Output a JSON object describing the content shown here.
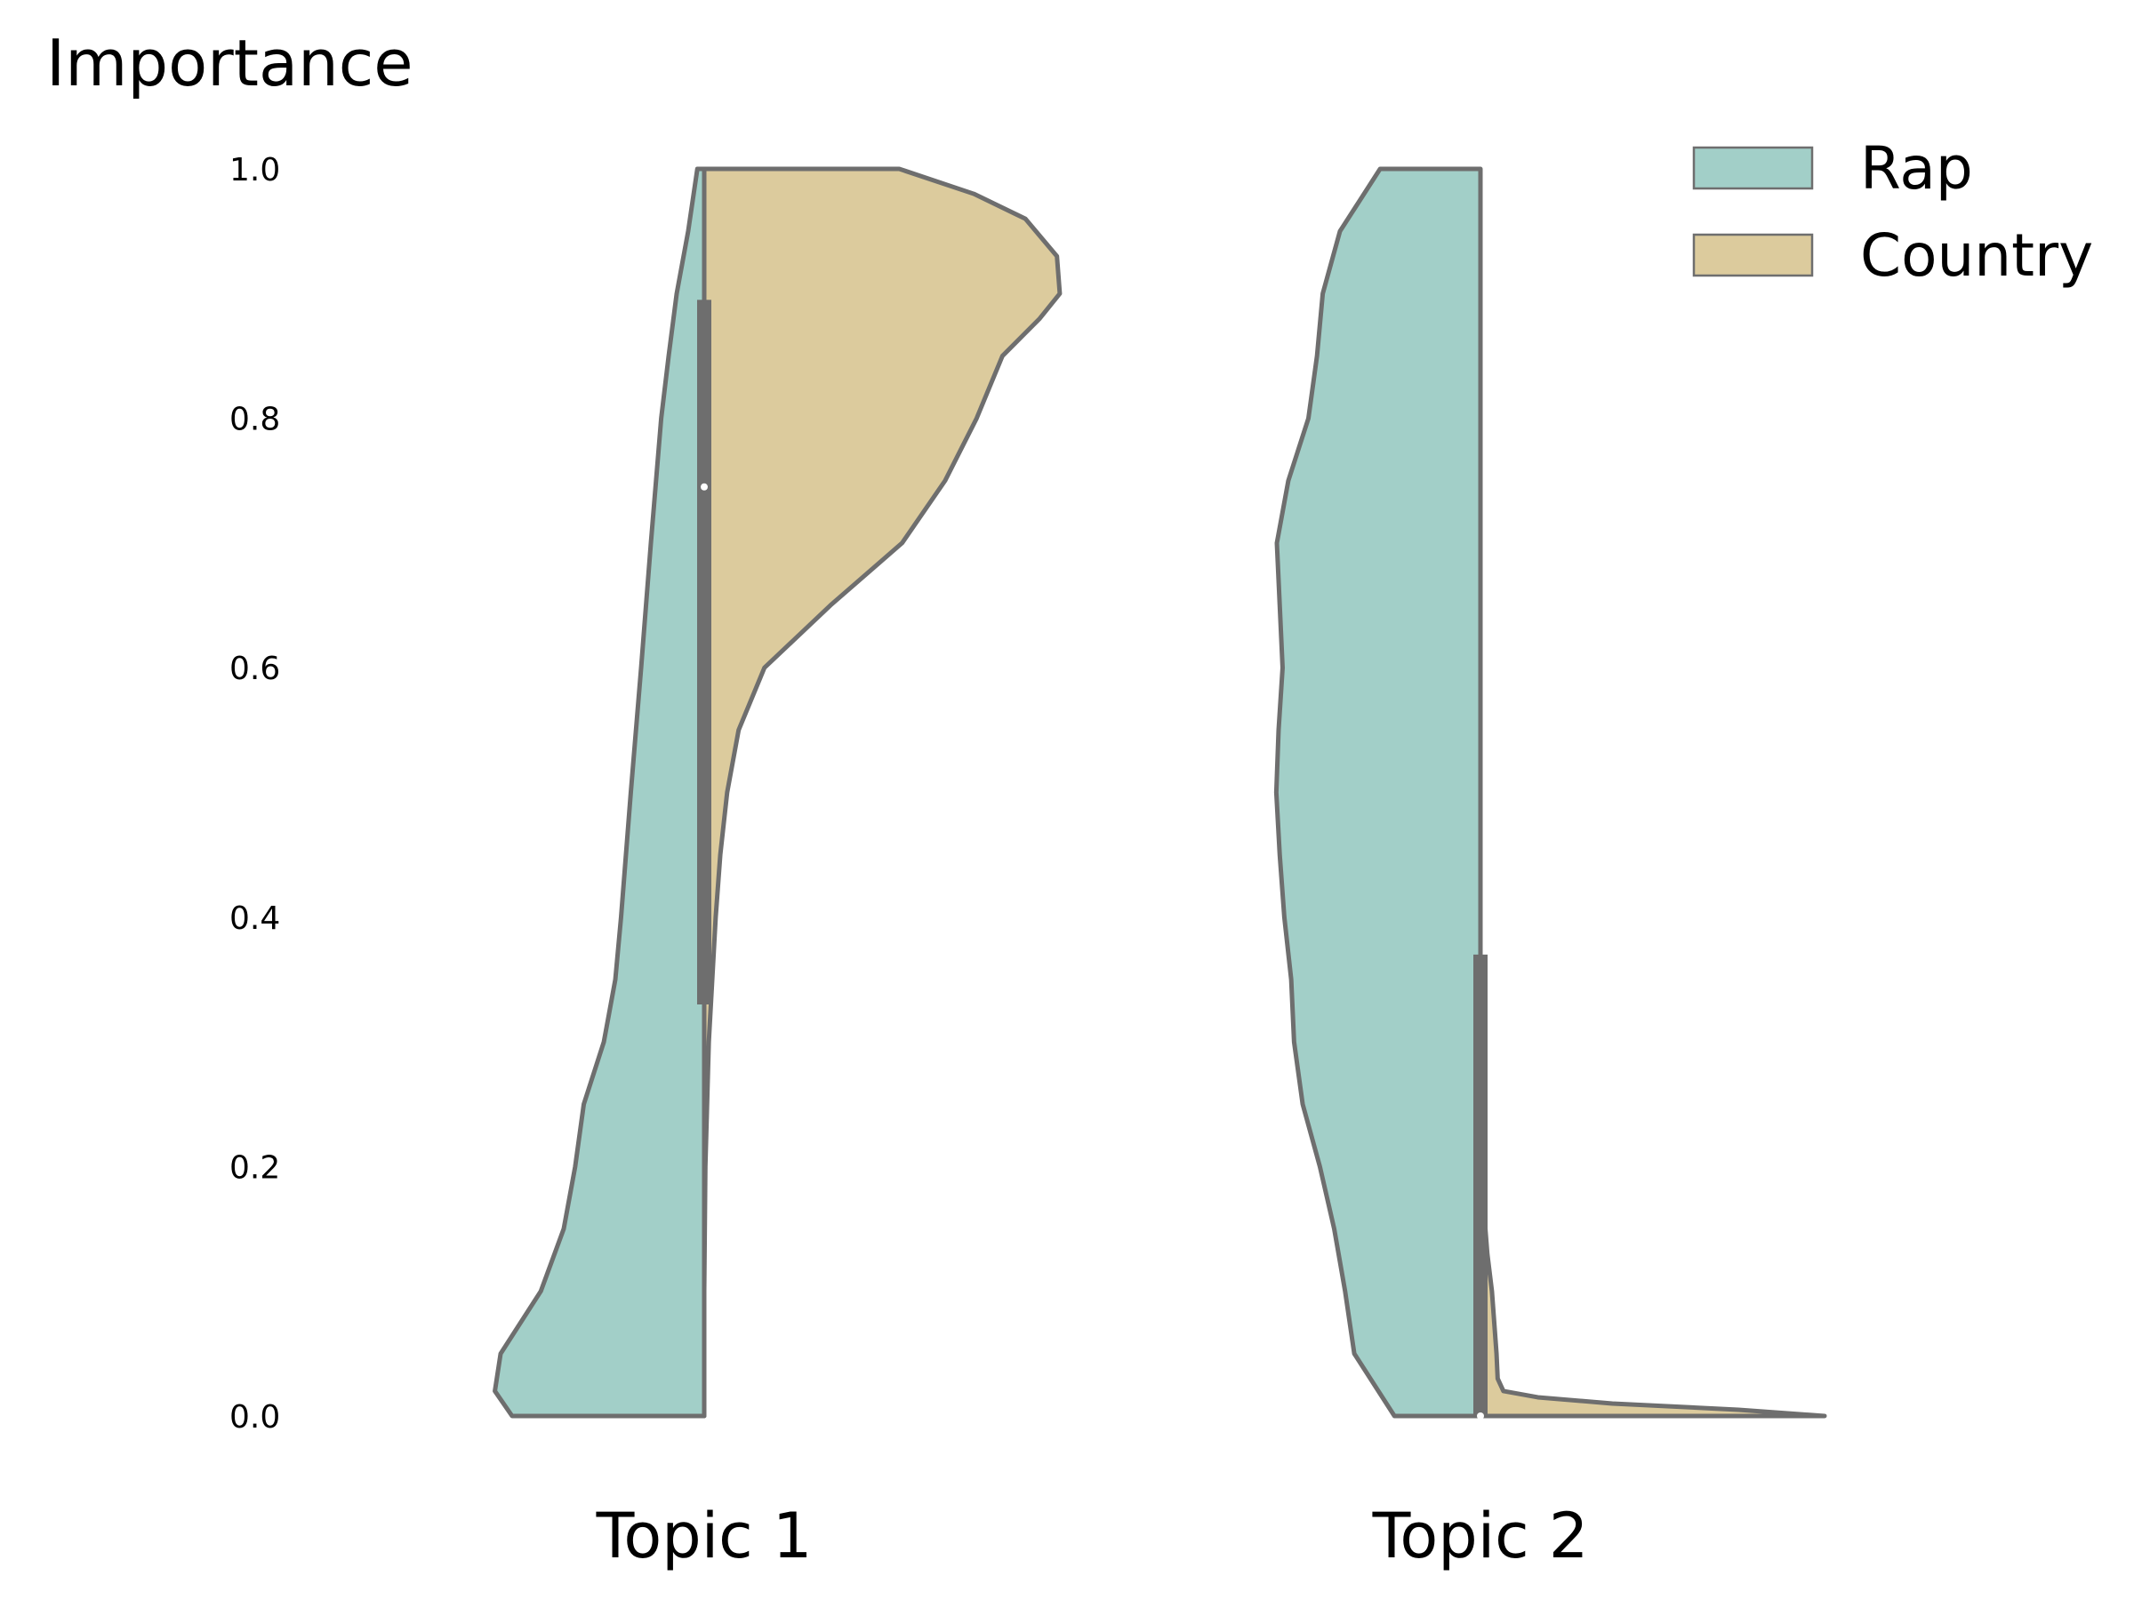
{
  "chart_data": {
    "type": "violin",
    "split": true,
    "ylabel": "Importance",
    "ylim": [
      0,
      1
    ],
    "yticks": [
      "0.0",
      "0.2",
      "0.4",
      "0.6",
      "0.8",
      "1.0"
    ],
    "categories": [
      "Topic 1",
      "Topic 2"
    ],
    "legend": {
      "position": "top-right",
      "entries": [
        "Rap",
        "Country"
      ]
    },
    "colors": {
      "Rap": "#a2cfc8",
      "Country": "#dccb9d",
      "outline": "#6e6e6e",
      "median": "#ffffff"
    },
    "series": [
      {
        "name": "Rap",
        "side": "left",
        "violins": [
          {
            "category": "Topic 1",
            "density": [
              [
                0.0,
                0.335
              ],
              [
                0.02,
                0.365
              ],
              [
                0.05,
                0.355
              ],
              [
                0.1,
                0.285
              ],
              [
                0.15,
                0.245
              ],
              [
                0.2,
                0.225
              ],
              [
                0.25,
                0.21
              ],
              [
                0.3,
                0.175
              ],
              [
                0.35,
                0.155
              ],
              [
                0.4,
                0.145
              ],
              [
                0.5,
                0.128
              ],
              [
                0.6,
                0.11
              ],
              [
                0.7,
                0.093
              ],
              [
                0.8,
                0.075
              ],
              [
                0.85,
                0.062
              ],
              [
                0.9,
                0.048
              ],
              [
                0.95,
                0.028
              ],
              [
                1.0,
                0.012
              ]
            ]
          },
          {
            "category": "Topic 2",
            "density": [
              [
                0.0,
                0.15
              ],
              [
                0.05,
                0.22
              ],
              [
                0.1,
                0.236
              ],
              [
                0.15,
                0.255
              ],
              [
                0.2,
                0.28
              ],
              [
                0.25,
                0.31
              ],
              [
                0.3,
                0.325
              ],
              [
                0.35,
                0.33
              ],
              [
                0.4,
                0.342
              ],
              [
                0.45,
                0.35
              ],
              [
                0.5,
                0.356
              ],
              [
                0.55,
                0.352
              ],
              [
                0.6,
                0.345
              ],
              [
                0.65,
                0.35
              ],
              [
                0.7,
                0.355
              ],
              [
                0.75,
                0.335
              ],
              [
                0.8,
                0.3
              ],
              [
                0.85,
                0.285
              ],
              [
                0.9,
                0.275
              ],
              [
                0.95,
                0.245
              ],
              [
                1.0,
                0.175
              ]
            ]
          }
        ],
        "box": [
          {
            "category": "Topic 1",
            "q1": 0.33,
            "median": 0.745,
            "q3": 0.895,
            "whisker_low": 0.14,
            "whisker_high": 1.0
          },
          {
            "category": "Topic 2",
            "q1": 0.0,
            "median": 0.0,
            "q3": 0.37,
            "whisker_low": 0.0,
            "whisker_high": 0.92
          }
        ]
      },
      {
        "name": "Country",
        "side": "right",
        "violins": [
          {
            "category": "Topic 1",
            "density": [
              [
                0.0,
                0.0
              ],
              [
                0.1,
                0.0
              ],
              [
                0.2,
                0.002
              ],
              [
                0.3,
                0.008
              ],
              [
                0.4,
                0.02
              ],
              [
                0.45,
                0.028
              ],
              [
                0.5,
                0.04
              ],
              [
                0.55,
                0.06
              ],
              [
                0.6,
                0.105
              ],
              [
                0.65,
                0.22
              ],
              [
                0.7,
                0.345
              ],
              [
                0.75,
                0.42
              ],
              [
                0.8,
                0.475
              ],
              [
                0.85,
                0.52
              ],
              [
                0.88,
                0.585
              ],
              [
                0.9,
                0.62
              ],
              [
                0.93,
                0.615
              ],
              [
                0.96,
                0.56
              ],
              [
                0.98,
                0.47
              ],
              [
                1.0,
                0.34
              ]
            ]
          },
          {
            "category": "Topic 2",
            "density": [
              [
                0.0,
                0.6
              ],
              [
                0.005,
                0.45
              ],
              [
                0.01,
                0.23
              ],
              [
                0.015,
                0.1
              ],
              [
                0.02,
                0.04
              ],
              [
                0.025,
                0.035
              ],
              [
                0.03,
                0.03
              ],
              [
                0.05,
                0.028
              ],
              [
                0.1,
                0.02
              ],
              [
                0.13,
                0.012
              ],
              [
                0.2,
                0.0
              ]
            ]
          }
        ],
        "box": [
          {
            "category": "Topic 1",
            "q1": 0.33,
            "median": 0.745,
            "q3": 0.895,
            "whisker_low": 0.14,
            "whisker_high": 1.0
          },
          {
            "category": "Topic 2",
            "q1": 0.0,
            "median": 0.0,
            "q3": 0.37,
            "whisker_low": 0.0,
            "whisker_high": 0.92
          }
        ]
      }
    ]
  }
}
